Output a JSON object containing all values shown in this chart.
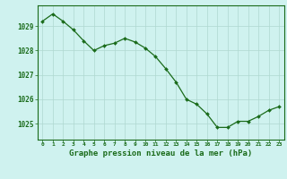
{
  "x": [
    0,
    1,
    2,
    3,
    4,
    5,
    6,
    7,
    8,
    9,
    10,
    11,
    12,
    13,
    14,
    15,
    16,
    17,
    18,
    19,
    20,
    21,
    22,
    23
  ],
  "y": [
    1029.2,
    1029.5,
    1029.2,
    1028.85,
    1028.4,
    1028.0,
    1028.2,
    1028.3,
    1028.5,
    1028.35,
    1028.1,
    1027.75,
    1027.25,
    1026.7,
    1026.0,
    1025.8,
    1025.4,
    1024.85,
    1024.85,
    1025.1,
    1025.1,
    1025.3,
    1025.55,
    1025.7
  ],
  "line_color": "#1a6b1a",
  "marker": "D",
  "marker_size": 2.0,
  "bg_color": "#cff2ef",
  "grid_color": "#afd8d0",
  "tick_color": "#1a6b1a",
  "label_color": "#1a6b1a",
  "xlabel": "Graphe pression niveau de la mer (hPa)",
  "xlabel_fontsize": 6.5,
  "ytick_labels": [
    "1025",
    "1026",
    "1027",
    "1028",
    "1029"
  ],
  "ytick_values": [
    1025,
    1026,
    1027,
    1028,
    1029
  ],
  "ylim": [
    1024.35,
    1029.85
  ],
  "xlim": [
    -0.5,
    23.5
  ],
  "linewidth": 0.9
}
